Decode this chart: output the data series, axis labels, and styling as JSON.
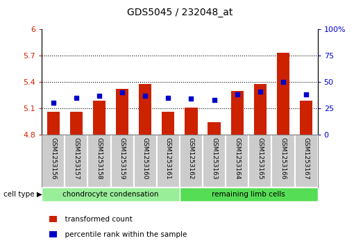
{
  "title": "GDS5045 / 232048_at",
  "samples": [
    "GSM1253156",
    "GSM1253157",
    "GSM1253158",
    "GSM1253159",
    "GSM1253160",
    "GSM1253161",
    "GSM1253162",
    "GSM1253163",
    "GSM1253164",
    "GSM1253165",
    "GSM1253166",
    "GSM1253167"
  ],
  "bar_values": [
    5.065,
    5.065,
    5.19,
    5.32,
    5.38,
    5.065,
    5.105,
    4.94,
    5.3,
    5.38,
    5.73,
    5.19
  ],
  "dot_values": [
    30,
    35,
    37,
    40,
    37,
    35,
    34,
    33,
    38,
    41,
    50,
    38
  ],
  "bar_bottom": 4.8,
  "ylim_left": [
    4.8,
    6.0
  ],
  "ylim_right": [
    0,
    100
  ],
  "yticks_left": [
    4.8,
    5.1,
    5.4,
    5.7,
    6.0
  ],
  "yticks_right": [
    0,
    25,
    50,
    75,
    100
  ],
  "ytick_labels_left": [
    "4.8",
    "5.1",
    "5.4",
    "5.7",
    "6"
  ],
  "ytick_labels_right": [
    "0",
    "25",
    "50",
    "75",
    "100%"
  ],
  "hlines": [
    5.1,
    5.4,
    5.7
  ],
  "bar_color": "#cc2200",
  "dot_color": "#0000cc",
  "group1_label": "chondrocyte condensation",
  "group2_label": "remaining limb cells",
  "group1_color": "#99ee99",
  "group2_color": "#55dd55",
  "cell_type_label": "cell type",
  "legend1": "transformed count",
  "legend2": "percentile rank within the sample",
  "n_group1": 6,
  "n_group2": 6,
  "bar_color_rgb": "#cc2200",
  "dot_color_rgb": "#0000cc",
  "bg_color": "#cccccc",
  "spine_color": "#888888"
}
